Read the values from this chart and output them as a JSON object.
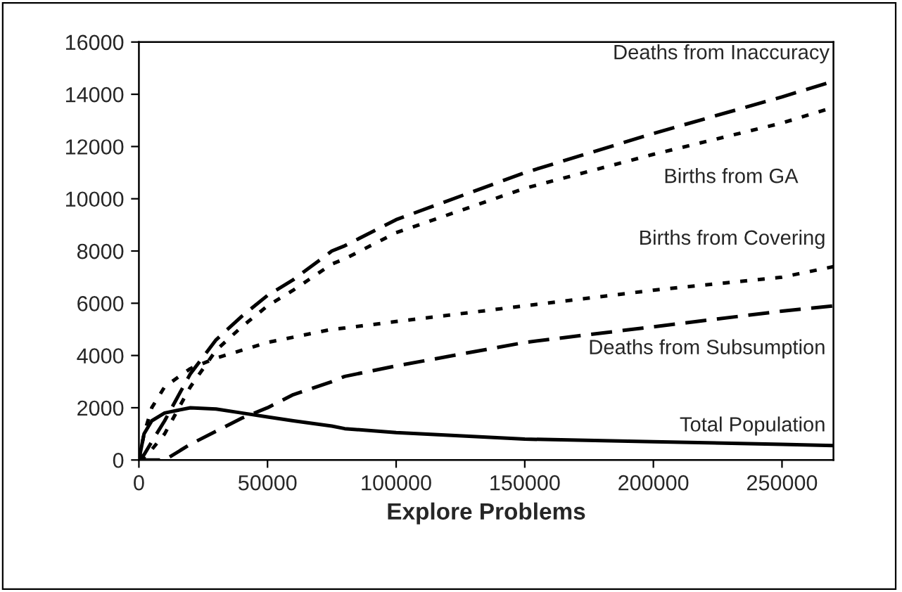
{
  "chart_data": {
    "type": "line",
    "xlabel": "Explore Problems",
    "xlim": [
      0,
      270000
    ],
    "ylim": [
      0,
      16000
    ],
    "xticks": [
      0,
      50000,
      100000,
      150000,
      200000,
      250000
    ],
    "yticks": [
      0,
      2000,
      4000,
      6000,
      8000,
      10000,
      12000,
      14000,
      16000
    ],
    "grid": false,
    "legend": false,
    "marker": "none",
    "x": [
      0,
      2000,
      5000,
      10000,
      20000,
      30000,
      40000,
      50000,
      60000,
      75000,
      80000,
      100000,
      150000,
      200000,
      250000,
      270000
    ],
    "series": [
      {
        "name": "Deaths from Inaccuracy",
        "color": "#000000",
        "line_style": "dashed",
        "values": [
          0,
          200,
          700,
          1500,
          3300,
          4600,
          5500,
          6300,
          6900,
          8000,
          8200,
          9200,
          11000,
          12500,
          13900,
          14500
        ]
      },
      {
        "name": "Births from GA",
        "color": "#000000",
        "line_style": "dotted",
        "values": [
          0,
          100,
          400,
          1000,
          2800,
          4200,
          5100,
          5900,
          6500,
          7500,
          7700,
          8700,
          10400,
          11700,
          12900,
          13500
        ]
      },
      {
        "name": "Births from Covering",
        "color": "#000000",
        "line_style": "dotted",
        "values": [
          0,
          1000,
          2000,
          2800,
          3500,
          3900,
          4200,
          4500,
          4700,
          5000,
          5050,
          5300,
          5900,
          6500,
          7000,
          7400
        ]
      },
      {
        "name": "Deaths from Subsumption",
        "color": "#000000",
        "line_style": "dashed",
        "values": [
          0,
          0,
          0,
          0,
          600,
          1100,
          1600,
          2000,
          2500,
          3000,
          3200,
          3600,
          4500,
          5100,
          5700,
          5900
        ]
      },
      {
        "name": "Total Population",
        "color": "#000000",
        "line_style": "solid",
        "values": [
          0,
          1000,
          1500,
          1800,
          2000,
          1950,
          1800,
          1650,
          1500,
          1300,
          1200,
          1050,
          800,
          700,
          600,
          550
        ]
      }
    ]
  }
}
